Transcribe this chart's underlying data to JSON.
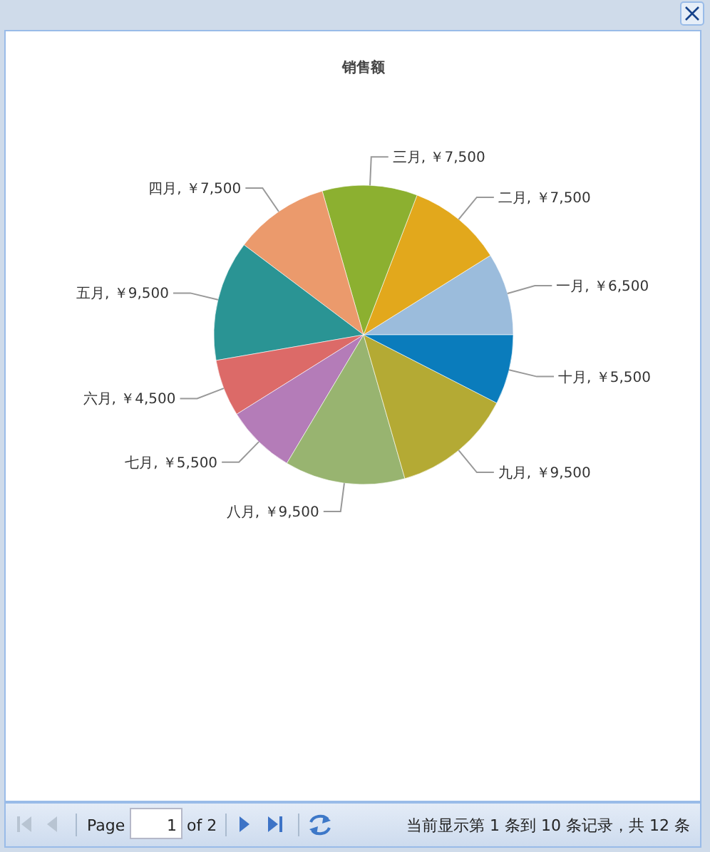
{
  "chart_data": {
    "type": "pie",
    "title": "销售额",
    "categories": [
      "一月",
      "二月",
      "三月",
      "四月",
      "五月",
      "六月",
      "七月",
      "八月",
      "九月",
      "十月"
    ],
    "values": [
      6500,
      7500,
      7500,
      7500,
      9500,
      4500,
      5500,
      9500,
      9500,
      5500
    ],
    "colors": [
      "#9bbcdc",
      "#e2a81c",
      "#8cb030",
      "#eb9a6c",
      "#2a9494",
      "#dc6a68",
      "#b47cb8",
      "#98b470",
      "#b4aa34",
      "#0a7cbc"
    ],
    "value_labels": [
      "￥6,500",
      "￥7,500",
      "￥7,500",
      "￥7,500",
      "￥9,500",
      "￥4,500",
      "￥5,500",
      "￥9,500",
      "￥9,500",
      "￥5,500"
    ],
    "annotations": [
      "Page",
      "1",
      "of 2",
      "当前显示第 1 条到 10 条记录，共 12 条"
    ]
  }
}
